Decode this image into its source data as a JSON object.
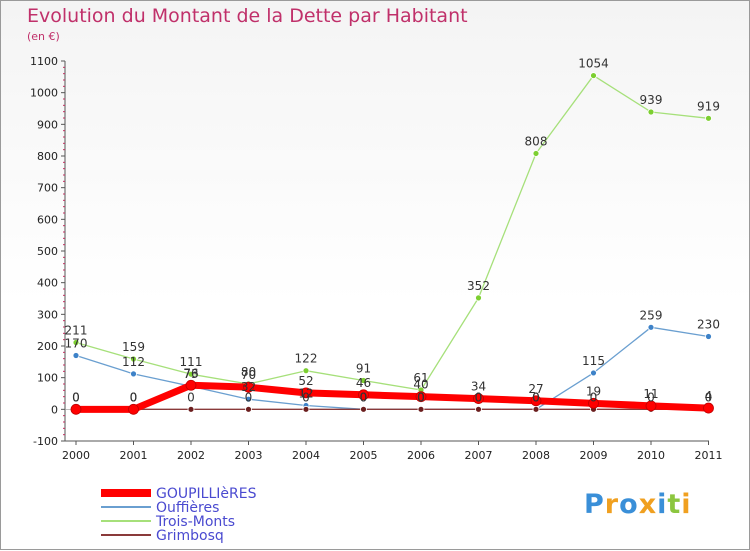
{
  "title": "Evolution du Montant de la Dette par Habitant",
  "unit": "(en €)",
  "logo": {
    "text": "Proxiti",
    "letters": [
      {
        "ch": "P",
        "color": "#3a8fd8"
      },
      {
        "ch": "r",
        "color": "#f0a020"
      },
      {
        "ch": "o",
        "color": "#3a8fd8"
      },
      {
        "ch": "x",
        "color": "#f0a020"
      },
      {
        "ch": "i",
        "color": "#3a8fd8"
      },
      {
        "ch": "t",
        "color": "#8cc63f"
      },
      {
        "ch": "i",
        "color": "#f0a020"
      }
    ]
  },
  "chart_data": {
    "type": "line",
    "x": [
      "2000",
      "2001",
      "2002",
      "2003",
      "2004",
      "2005",
      "2006",
      "2007",
      "2008",
      "2009",
      "2010",
      "2011"
    ],
    "ylim": [
      -100,
      1100
    ],
    "yticks": [
      -100,
      0,
      100,
      200,
      300,
      400,
      500,
      600,
      700,
      800,
      900,
      1000,
      1100
    ],
    "grid": false,
    "legend_position": "bottom-left",
    "series": [
      {
        "name": "Oufficres_placeholder",
        "label": "Ouffières",
        "color": "#6a9fd0",
        "marker": "#3d82c8",
        "width": 1.3,
        "labels": false,
        "values": [
          170,
          112,
          73,
          32,
          12,
          0,
          0,
          0,
          0,
          115,
          259,
          230
        ]
      },
      {
        "name": "Trois-Monts",
        "label": "Trois-Monts",
        "color": "#a6e07a",
        "marker": "#7ccf30",
        "width": 1.3,
        "labels": true,
        "values": [
          211,
          159,
          111,
          80,
          122,
          91,
          61,
          352,
          808,
          1054,
          939,
          919
        ]
      },
      {
        "name": "Grimbosq",
        "label": "Grimbosq",
        "color": "#8a3a3a",
        "marker": "#6b1e1e",
        "width": 1.3,
        "labels": false,
        "values": [
          0,
          0,
          0,
          0,
          0,
          0,
          0,
          0,
          0,
          0,
          0,
          0
        ]
      },
      {
        "name": "GOUPILLIèRES",
        "label": "GOUPILLIèRES",
        "color": "#ff0000",
        "marker": "#ff0000",
        "width": 7,
        "labels": true,
        "values": [
          0,
          0,
          76,
          70,
          52,
          46,
          40,
          34,
          27,
          19,
          11,
          4
        ]
      }
    ],
    "point_labels": [
      {
        "series": 0,
        "i": 0,
        "text": "170"
      },
      {
        "series": 0,
        "i": 1,
        "text": "112"
      },
      {
        "series": 0,
        "i": 2,
        "text": "73"
      },
      {
        "series": 0,
        "i": 3,
        "text": "32"
      },
      {
        "series": 0,
        "i": 4,
        "text": "12"
      },
      {
        "series": 0,
        "i": 5,
        "text": "0"
      },
      {
        "series": 0,
        "i": 6,
        "text": "0"
      },
      {
        "series": 0,
        "i": 7,
        "text": "0"
      },
      {
        "series": 0,
        "i": 8,
        "text": "0"
      },
      {
        "series": 0,
        "i": 9,
        "text": "115"
      },
      {
        "series": 0,
        "i": 10,
        "text": "259"
      },
      {
        "series": 0,
        "i": 11,
        "text": "230"
      },
      {
        "series": 2,
        "i": 0,
        "text": "0"
      },
      {
        "series": 2,
        "i": 1,
        "text": "0"
      },
      {
        "series": 2,
        "i": 2,
        "text": "0"
      },
      {
        "series": 2,
        "i": 3,
        "text": "0"
      },
      {
        "series": 2,
        "i": 4,
        "text": "0"
      },
      {
        "series": 2,
        "i": 5,
        "text": "0"
      },
      {
        "series": 2,
        "i": 6,
        "text": "0"
      },
      {
        "series": 2,
        "i": 7,
        "text": "0"
      },
      {
        "series": 2,
        "i": 8,
        "text": "0"
      },
      {
        "series": 2,
        "i": 9,
        "text": "0"
      },
      {
        "series": 2,
        "i": 10,
        "text": "0"
      },
      {
        "series": 2,
        "i": 11,
        "text": "0"
      }
    ],
    "legend": [
      "GOUPILLIèRES",
      "Ouffières",
      "Trois-Monts",
      "Grimbosq"
    ]
  }
}
